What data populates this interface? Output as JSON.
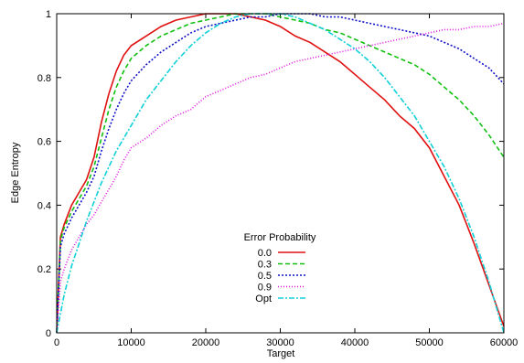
{
  "chart_data": {
    "type": "line",
    "title": "",
    "xlabel": "Target",
    "ylabel": "Edge Entropy",
    "xlim": [
      0,
      60000
    ],
    "ylim": [
      0,
      1
    ],
    "x_ticks": [
      0,
      10000,
      20000,
      30000,
      40000,
      50000,
      60000
    ],
    "y_ticks": [
      0,
      0.2,
      0.4,
      0.6,
      0.8,
      1
    ],
    "x_tick_labels": [
      "0",
      "10000",
      "20000",
      "30000",
      "40000",
      "50000",
      "60000"
    ],
    "y_tick_labels": [
      "0",
      "0.2",
      "0.4",
      "0.6",
      "0.8",
      "1"
    ],
    "grid": false,
    "legend": {
      "title": "Error Probability",
      "placement": "lower-center"
    },
    "series": [
      {
        "name": "0.0",
        "color": "#e01010",
        "dash": "solid",
        "x": [
          0,
          500,
          1000,
          2000,
          3000,
          4000,
          5000,
          6000,
          7000,
          8000,
          9000,
          10000,
          12000,
          14000,
          16000,
          18000,
          20000,
          22000,
          24000,
          26000,
          28000,
          30000,
          32000,
          34000,
          36000,
          38000,
          40000,
          42000,
          44000,
          46000,
          48000,
          50000,
          52000,
          54000,
          56000,
          58000,
          60000
        ],
        "y": [
          0,
          0.3,
          0.34,
          0.4,
          0.44,
          0.48,
          0.55,
          0.66,
          0.75,
          0.82,
          0.87,
          0.9,
          0.93,
          0.96,
          0.98,
          0.99,
          1.0,
          1.0,
          1.0,
          0.99,
          0.98,
          0.96,
          0.93,
          0.91,
          0.88,
          0.85,
          0.81,
          0.77,
          0.73,
          0.68,
          0.64,
          0.58,
          0.49,
          0.4,
          0.28,
          0.15,
          0.02
        ]
      },
      {
        "name": "0.3",
        "color": "#10c010",
        "dash": "5,3",
        "x": [
          0,
          500,
          1000,
          2000,
          3000,
          4000,
          5000,
          6000,
          7000,
          8000,
          9000,
          10000,
          12000,
          14000,
          16000,
          18000,
          20000,
          22000,
          24000,
          26000,
          28000,
          30000,
          32000,
          34000,
          36000,
          38000,
          40000,
          42000,
          44000,
          46000,
          48000,
          50000,
          52000,
          54000,
          56000,
          58000,
          60000
        ],
        "y": [
          0,
          0.29,
          0.33,
          0.38,
          0.42,
          0.46,
          0.52,
          0.61,
          0.7,
          0.77,
          0.82,
          0.86,
          0.9,
          0.93,
          0.95,
          0.97,
          0.98,
          0.99,
          1.0,
          1.0,
          1.0,
          0.99,
          0.98,
          0.97,
          0.95,
          0.94,
          0.92,
          0.9,
          0.88,
          0.86,
          0.84,
          0.81,
          0.77,
          0.73,
          0.68,
          0.62,
          0.55
        ]
      },
      {
        "name": "0.5",
        "color": "#1010c8",
        "dash": "2,2",
        "x": [
          0,
          500,
          1000,
          2000,
          3000,
          4000,
          5000,
          6000,
          7000,
          8000,
          9000,
          10000,
          12000,
          14000,
          16000,
          18000,
          20000,
          22000,
          24000,
          26000,
          28000,
          30000,
          32000,
          34000,
          36000,
          38000,
          40000,
          42000,
          44000,
          46000,
          48000,
          50000,
          52000,
          54000,
          56000,
          58000,
          60000
        ],
        "y": [
          0,
          0.27,
          0.31,
          0.36,
          0.4,
          0.44,
          0.49,
          0.57,
          0.64,
          0.7,
          0.75,
          0.79,
          0.84,
          0.88,
          0.91,
          0.94,
          0.96,
          0.97,
          0.98,
          0.99,
          0.99,
          1.0,
          1.0,
          1.0,
          0.99,
          0.99,
          0.98,
          0.97,
          0.96,
          0.95,
          0.94,
          0.93,
          0.91,
          0.89,
          0.86,
          0.83,
          0.78
        ]
      },
      {
        "name": "0.9",
        "color": "#e010e0",
        "dash": "1,2",
        "x": [
          0,
          500,
          1000,
          2000,
          3000,
          4000,
          5000,
          6000,
          7000,
          8000,
          9000,
          10000,
          12000,
          14000,
          16000,
          18000,
          20000,
          22000,
          24000,
          26000,
          28000,
          30000,
          32000,
          34000,
          36000,
          38000,
          40000,
          42000,
          44000,
          46000,
          48000,
          50000,
          52000,
          54000,
          56000,
          58000,
          60000
        ],
        "y": [
          0,
          0.16,
          0.2,
          0.26,
          0.3,
          0.34,
          0.37,
          0.41,
          0.45,
          0.49,
          0.54,
          0.58,
          0.61,
          0.65,
          0.68,
          0.7,
          0.74,
          0.76,
          0.78,
          0.8,
          0.81,
          0.83,
          0.85,
          0.86,
          0.87,
          0.88,
          0.89,
          0.9,
          0.91,
          0.92,
          0.93,
          0.94,
          0.95,
          0.95,
          0.96,
          0.96,
          0.97
        ]
      },
      {
        "name": "Opt",
        "color": "#10d0d8",
        "dash": "6,2,2,2",
        "x": [
          0,
          1000,
          2000,
          3000,
          4000,
          6000,
          8000,
          10000,
          12000,
          14000,
          16000,
          18000,
          20000,
          22000,
          24000,
          26000,
          28000,
          30000,
          32000,
          34000,
          36000,
          38000,
          40000,
          42000,
          44000,
          46000,
          48000,
          50000,
          52000,
          54000,
          56000,
          58000,
          59000,
          60000
        ],
        "y": [
          0,
          0.12,
          0.21,
          0.28,
          0.35,
          0.47,
          0.57,
          0.65,
          0.73,
          0.79,
          0.85,
          0.9,
          0.94,
          0.97,
          0.99,
          1.0,
          1.0,
          1.0,
          0.99,
          0.97,
          0.95,
          0.92,
          0.89,
          0.85,
          0.8,
          0.74,
          0.68,
          0.6,
          0.52,
          0.42,
          0.3,
          0.16,
          0.08,
          0.0
        ]
      }
    ]
  }
}
